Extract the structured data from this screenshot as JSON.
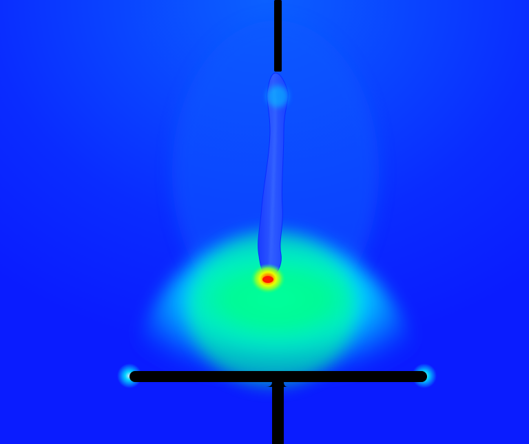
{
  "scene": {
    "description_visible_text": "",
    "colormap": {
      "background_blue": "#0a1cff",
      "field_blue": "#0b3cff",
      "cyan": "#00f5ff",
      "green": "#00ff8a",
      "yellow": "#e9ff00",
      "orange": "#ff8a00",
      "red": "#ff1a00",
      "electrode": "#000000",
      "streamer": "#1a4dff"
    }
  }
}
